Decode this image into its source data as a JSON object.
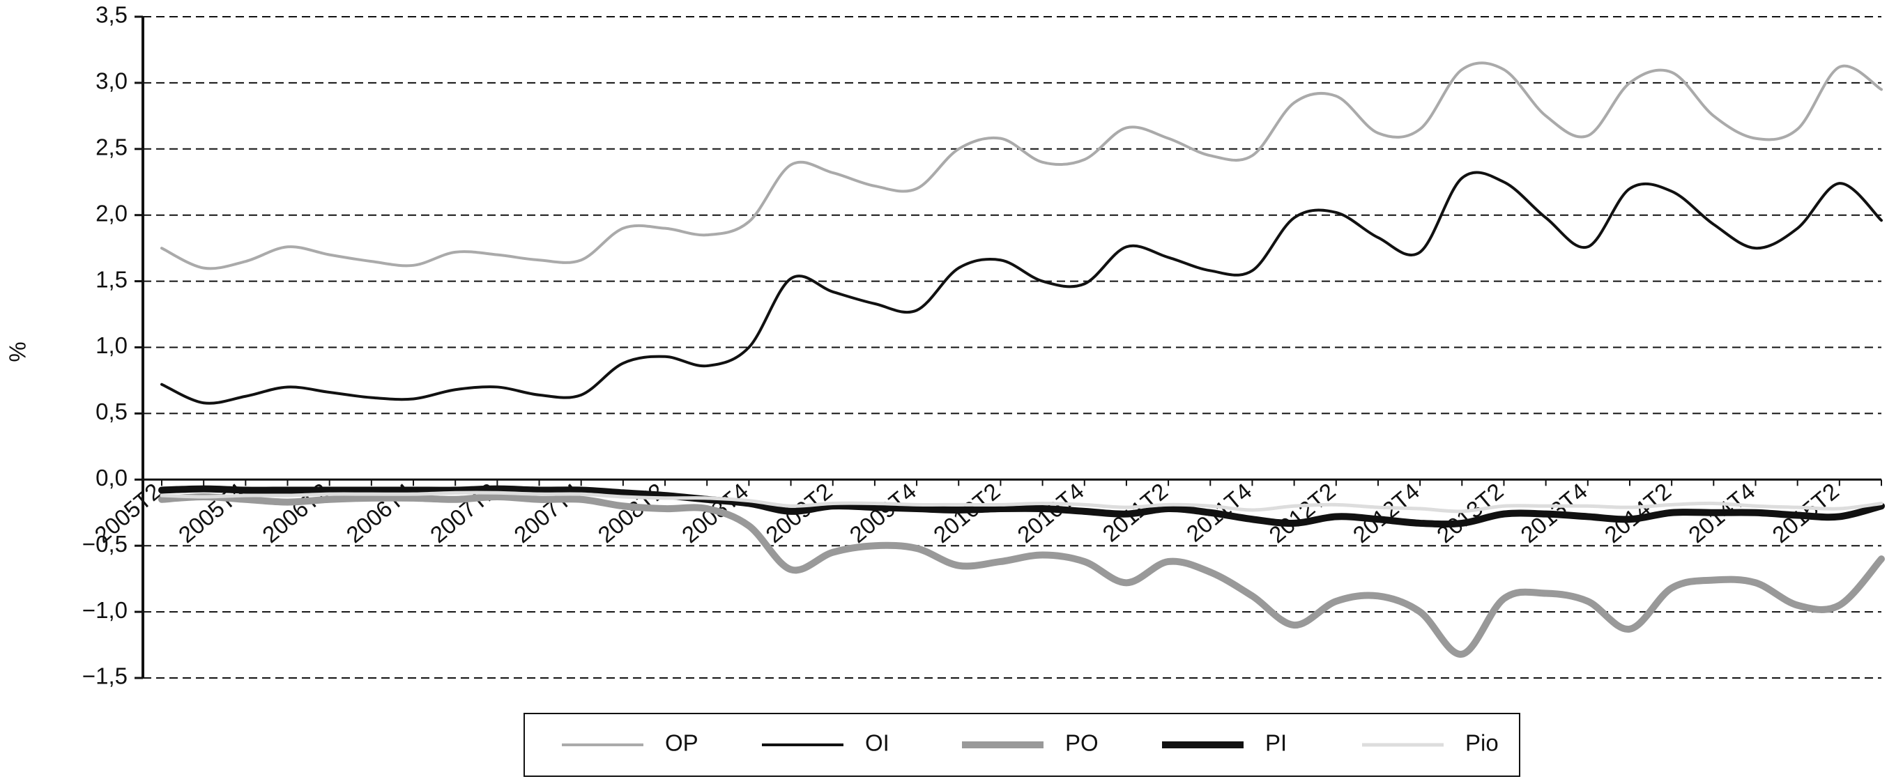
{
  "chart_data": {
    "type": "line",
    "ylabel": "%",
    "categories": [
      "2005T2",
      null,
      "2005T4",
      null,
      "2006T2",
      null,
      "2006T4",
      null,
      "2007T2",
      null,
      "2007T4",
      null,
      "2008T2",
      null,
      "2008T4",
      null,
      "2009T2",
      null,
      "2009T4",
      null,
      "2010T2",
      null,
      "2010T4",
      null,
      "2011T2",
      null,
      "2011T4",
      null,
      "2012T2",
      null,
      "2012T4",
      null,
      "2013T2",
      null,
      "2013T4",
      null,
      "2014T2",
      null,
      "2014T4",
      null,
      "2015T2",
      null
    ],
    "series": [
      {
        "name": "OP",
        "color": "#aaaaaa",
        "width": 4,
        "values": [
          1.75,
          1.6,
          1.65,
          1.76,
          1.7,
          1.65,
          1.62,
          1.72,
          1.7,
          1.66,
          1.66,
          1.9,
          1.9,
          1.85,
          1.95,
          2.38,
          2.32,
          2.22,
          2.2,
          2.5,
          2.58,
          2.4,
          2.42,
          2.66,
          2.58,
          2.45,
          2.45,
          2.85,
          2.9,
          2.62,
          2.65,
          3.1,
          3.1,
          2.75,
          2.6,
          3.0,
          3.08,
          2.75,
          2.58,
          2.65,
          3.12,
          2.95
        ]
      },
      {
        "name": "OI",
        "color": "#111111",
        "width": 4,
        "values": [
          0.72,
          0.58,
          0.63,
          0.7,
          0.66,
          0.62,
          0.61,
          0.68,
          0.7,
          0.64,
          0.64,
          0.88,
          0.93,
          0.86,
          1.0,
          1.52,
          1.42,
          1.33,
          1.28,
          1.6,
          1.66,
          1.5,
          1.48,
          1.76,
          1.68,
          1.58,
          1.58,
          1.98,
          2.02,
          1.83,
          1.72,
          2.28,
          2.25,
          1.98,
          1.76,
          2.2,
          2.18,
          1.93,
          1.75,
          1.9,
          2.24,
          1.96
        ]
      },
      {
        "name": "PO",
        "color": "#999999",
        "width": 10,
        "values": [
          -0.15,
          -0.13,
          -0.15,
          -0.17,
          -0.15,
          -0.14,
          -0.14,
          -0.15,
          -0.13,
          -0.15,
          -0.15,
          -0.2,
          -0.22,
          -0.22,
          -0.35,
          -0.68,
          -0.55,
          -0.5,
          -0.52,
          -0.65,
          -0.62,
          -0.57,
          -0.62,
          -0.78,
          -0.62,
          -0.7,
          -0.88,
          -1.1,
          -0.92,
          -0.88,
          -1.0,
          -1.32,
          -0.9,
          -0.86,
          -0.92,
          -1.13,
          -0.82,
          -0.76,
          -0.78,
          -0.95,
          -0.95,
          -0.6
        ]
      },
      {
        "name": "PI",
        "color": "#111111",
        "width": 10,
        "values": [
          -0.08,
          -0.07,
          -0.08,
          -0.08,
          -0.08,
          -0.08,
          -0.08,
          -0.08,
          -0.07,
          -0.08,
          -0.08,
          -0.1,
          -0.12,
          -0.15,
          -0.18,
          -0.24,
          -0.2,
          -0.21,
          -0.22,
          -0.23,
          -0.22,
          -0.22,
          -0.24,
          -0.26,
          -0.22,
          -0.25,
          -0.3,
          -0.33,
          -0.28,
          -0.3,
          -0.33,
          -0.33,
          -0.26,
          -0.26,
          -0.28,
          -0.3,
          -0.25,
          -0.25,
          -0.25,
          -0.27,
          -0.28,
          -0.2
        ]
      },
      {
        "name": "Pio",
        "color": "#dddddd",
        "width": 5,
        "values": [
          -0.12,
          -0.13,
          -0.12,
          -0.12,
          -0.11,
          -0.11,
          -0.11,
          -0.1,
          -0.1,
          -0.11,
          -0.11,
          -0.13,
          -0.14,
          -0.14,
          -0.16,
          -0.2,
          -0.18,
          -0.18,
          -0.19,
          -0.19,
          -0.19,
          -0.18,
          -0.19,
          -0.21,
          -0.19,
          -0.2,
          -0.23,
          -0.2,
          -0.19,
          -0.21,
          -0.22,
          -0.24,
          -0.2,
          -0.2,
          -0.2,
          -0.21,
          -0.19,
          -0.18,
          -0.2,
          -0.21,
          -0.22,
          -0.18
        ]
      }
    ],
    "ylim": [
      -1.5,
      3.5
    ],
    "yticks": [
      {
        "value": -1.5,
        "label": "−1,5"
      },
      {
        "value": -1.0,
        "label": "−1,0"
      },
      {
        "value": -0.5,
        "label": "−0,5"
      },
      {
        "value": 0,
        "label": "0,0"
      },
      {
        "value": 0.5,
        "label": "0,5"
      },
      {
        "value": 1.0,
        "label": "1,0"
      },
      {
        "value": 1.5,
        "label": "1,5"
      },
      {
        "value": 2.0,
        "label": "2,0"
      },
      {
        "value": 2.5,
        "label": "2,5"
      },
      {
        "value": 3.0,
        "label": "3,0"
      },
      {
        "value": 3.5,
        "label": "3,5"
      }
    ],
    "grid": true,
    "legend": "bottom"
  }
}
